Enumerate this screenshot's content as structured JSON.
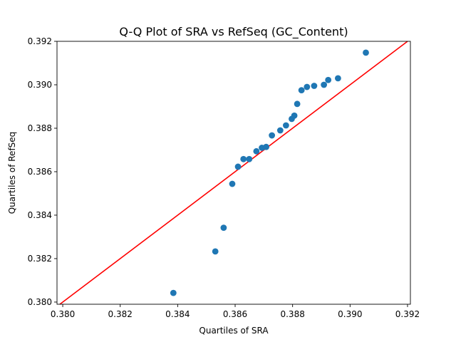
{
  "chart_data": {
    "type": "scatter",
    "title": "Q-Q Plot of SRA vs RefSeq (GC_Content)",
    "xlabel": "Quartiles of SRA",
    "ylabel": "Quartiles of RefSeq",
    "xlim": [
      0.3798,
      0.3921
    ],
    "ylim": [
      0.3799,
      0.392
    ],
    "x_ticks": [
      "0.380",
      "0.382",
      "0.384",
      "0.386",
      "0.388",
      "0.390",
      "0.392"
    ],
    "y_ticks": [
      "0.380",
      "0.382",
      "0.384",
      "0.386",
      "0.388",
      "0.390",
      "0.392"
    ],
    "grid": false,
    "legend": "none",
    "colors": {
      "points": "#1f77b4",
      "reference_line": "#ff0000"
    },
    "reference_line": {
      "type": "y=x"
    },
    "points": [
      {
        "x": 0.38385,
        "y": 0.38042
      },
      {
        "x": 0.38531,
        "y": 0.38233
      },
      {
        "x": 0.3856,
        "y": 0.38342
      },
      {
        "x": 0.3859,
        "y": 0.38544
      },
      {
        "x": 0.3861,
        "y": 0.38623
      },
      {
        "x": 0.38629,
        "y": 0.38658
      },
      {
        "x": 0.38649,
        "y": 0.38658
      },
      {
        "x": 0.38674,
        "y": 0.38694
      },
      {
        "x": 0.38693,
        "y": 0.3871
      },
      {
        "x": 0.38708,
        "y": 0.38714
      },
      {
        "x": 0.38728,
        "y": 0.38767
      },
      {
        "x": 0.38757,
        "y": 0.3879
      },
      {
        "x": 0.38777,
        "y": 0.38813
      },
      {
        "x": 0.38797,
        "y": 0.38843
      },
      {
        "x": 0.38806,
        "y": 0.38858
      },
      {
        "x": 0.38816,
        "y": 0.38912
      },
      {
        "x": 0.38831,
        "y": 0.38975
      },
      {
        "x": 0.3885,
        "y": 0.3899
      },
      {
        "x": 0.38875,
        "y": 0.38995
      },
      {
        "x": 0.38909,
        "y": 0.39
      },
      {
        "x": 0.38924,
        "y": 0.39022
      },
      {
        "x": 0.38958,
        "y": 0.3903
      },
      {
        "x": 0.39055,
        "y": 0.39148
      }
    ]
  }
}
